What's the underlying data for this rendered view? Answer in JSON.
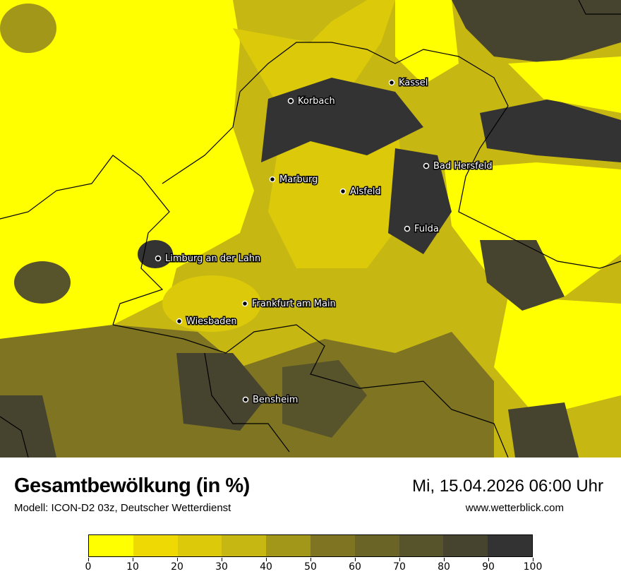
{
  "map": {
    "cities": [
      "Kassel",
      "Korbach",
      "Bad Hersfeld",
      "Marburg",
      "Alsfeld",
      "Fulda",
      "Limburg an der Lahn",
      "Frankfurt am Main",
      "Wiesbaden",
      "Bensheim"
    ]
  },
  "header": {
    "title": "Gesamtbewölkung (in %)",
    "subtitle": "Modell: ICON-D2 03z, Deutscher Wetterdienst",
    "datetime": "Mi, 15.04.2026 06:00 Uhr",
    "website": "www.wetterblick.com"
  },
  "legend": {
    "unit": "%",
    "ticks": [
      "0",
      "10",
      "20",
      "30",
      "40",
      "50",
      "60",
      "70",
      "80",
      "90",
      "100"
    ],
    "colors": [
      "#ffff00",
      "#eed905",
      "#dbc90a",
      "#c6b712",
      "#a29719",
      "#7e7422",
      "#6a6427",
      "#57532b",
      "#46432f",
      "#333333"
    ]
  }
}
